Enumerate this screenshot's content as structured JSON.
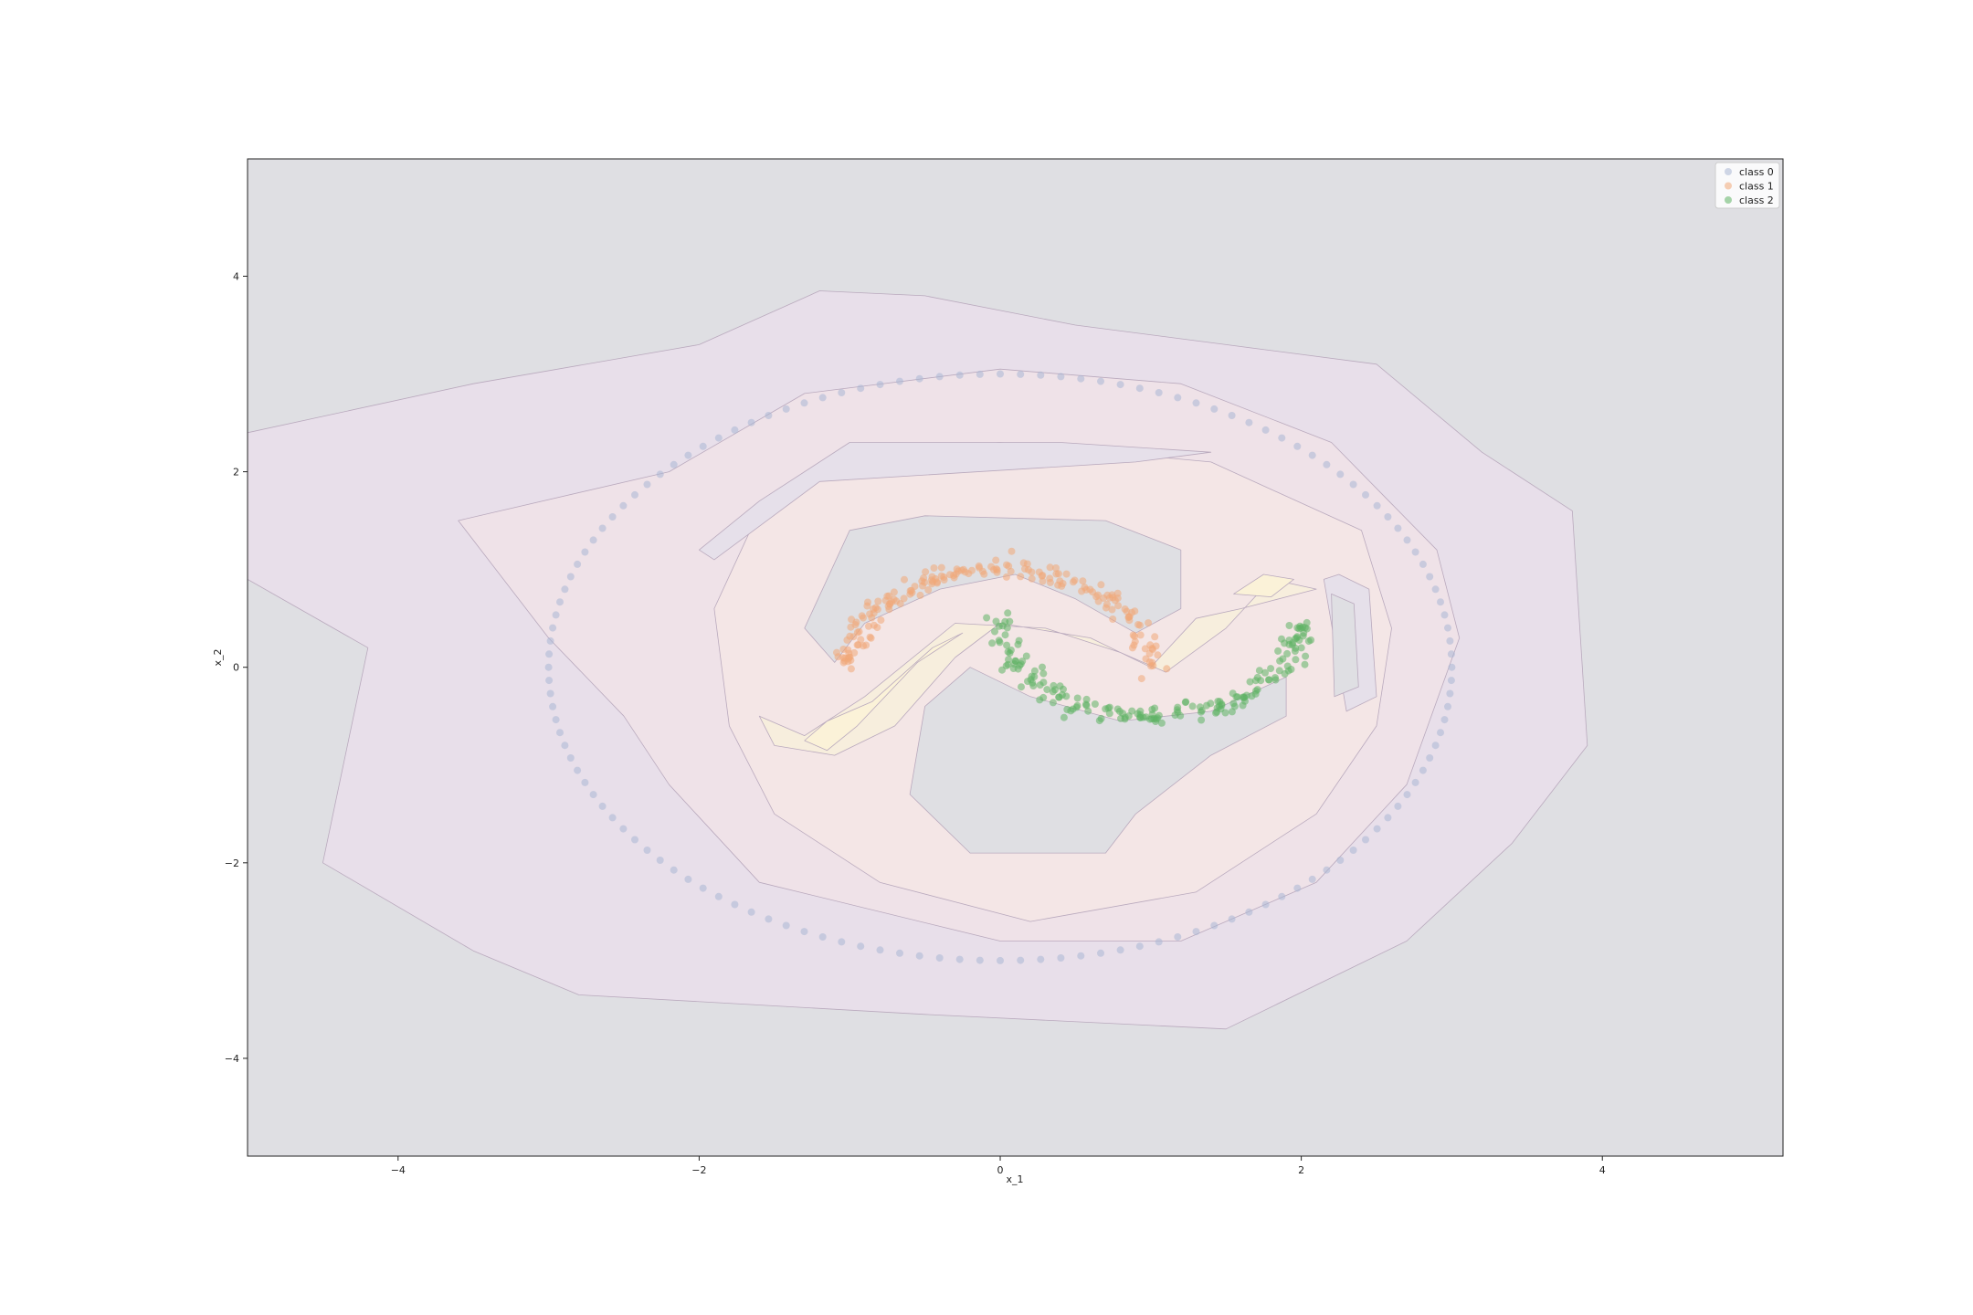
{
  "chart_data": {
    "type": "scatter",
    "title": "",
    "xlabel": "x_1",
    "ylabel": "x_2",
    "xlim": [
      -5.0,
      5.2
    ],
    "ylim": [
      -5.0,
      5.2
    ],
    "xticks": [
      -4,
      -2,
      0,
      2,
      4
    ],
    "yticks": [
      -4,
      -2,
      0,
      2,
      4
    ],
    "xtick_labels": [
      "−4",
      "−2",
      "0",
      "2",
      "4"
    ],
    "ytick_labels": [
      "−4",
      "−2",
      "0",
      "2",
      "4"
    ],
    "grid": false,
    "legend_position": "top-right",
    "background_color": "#dfdfe3",
    "series": [
      {
        "name": "class 0",
        "color": "#aab6d3",
        "shape": "circle",
        "radius": 3.0,
        "n": 140,
        "noise": 0.0
      },
      {
        "name": "class 1",
        "color": "#f0a878",
        "shape": "upper-moon",
        "center": [
          0,
          0
        ],
        "radius": 1.0,
        "n": 190,
        "noise": 0.05
      },
      {
        "name": "class 2",
        "color": "#5fb265",
        "shape": "lower-moon",
        "center": [
          1,
          0.5
        ],
        "radius": 1.0,
        "n": 190,
        "noise": 0.05
      }
    ],
    "decision_regions": [
      {
        "level": 1,
        "color": "#e8dfea",
        "polygon": [
          [
            -5,
            2.4
          ],
          [
            -3.5,
            2.9
          ],
          [
            -2,
            3.3
          ],
          [
            -1.2,
            3.85
          ],
          [
            -0.5,
            3.8
          ],
          [
            0.5,
            3.5
          ],
          [
            1.5,
            3.3
          ],
          [
            2.5,
            3.1
          ],
          [
            3.2,
            2.2
          ],
          [
            3.8,
            1.6
          ],
          [
            3.9,
            -0.8
          ],
          [
            3.4,
            -1.8
          ],
          [
            2.7,
            -2.8
          ],
          [
            1.5,
            -3.7
          ],
          [
            -0.5,
            -3.55
          ],
          [
            -2.8,
            -3.35
          ],
          [
            -3.5,
            -2.9
          ],
          [
            -4.5,
            -2.0
          ],
          [
            -4.2,
            0.2
          ],
          [
            -5,
            0.9
          ]
        ]
      },
      {
        "level": 2,
        "color": "#efe2e8",
        "polygon": [
          [
            -3.6,
            1.5
          ],
          [
            -2.2,
            2.0
          ],
          [
            -1.3,
            2.8
          ],
          [
            0.0,
            3.05
          ],
          [
            1.2,
            2.9
          ],
          [
            2.2,
            2.3
          ],
          [
            2.9,
            1.2
          ],
          [
            3.05,
            0.3
          ],
          [
            2.7,
            -1.2
          ],
          [
            2.1,
            -2.2
          ],
          [
            1.2,
            -2.8
          ],
          [
            0.0,
            -2.8
          ],
          [
            -1.6,
            -2.2
          ],
          [
            -2.2,
            -1.2
          ],
          [
            -2.5,
            -0.5
          ],
          [
            -3.0,
            0.3
          ]
        ]
      },
      {
        "level": 3,
        "color": "#f4e6e6",
        "polygon": [
          [
            -1.9,
            0.6
          ],
          [
            -1.6,
            1.6
          ],
          [
            -1.0,
            2.2
          ],
          [
            0.0,
            2.3
          ],
          [
            1.4,
            2.1
          ],
          [
            2.4,
            1.4
          ],
          [
            2.6,
            0.4
          ],
          [
            2.5,
            -0.6
          ],
          [
            2.1,
            -1.5
          ],
          [
            1.3,
            -2.3
          ],
          [
            0.2,
            -2.6
          ],
          [
            -0.8,
            -2.2
          ],
          [
            -1.5,
            -1.5
          ],
          [
            -1.8,
            -0.6
          ]
        ]
      },
      {
        "level": 4,
        "color": "#f7eedd",
        "polygon": [
          [
            -1.6,
            -0.5
          ],
          [
            -1.3,
            -0.7
          ],
          [
            -0.9,
            -0.3
          ],
          [
            -0.3,
            0.45
          ],
          [
            0.3,
            0.4
          ],
          [
            0.8,
            0.15
          ],
          [
            1.1,
            -0.05
          ],
          [
            1.5,
            0.4
          ],
          [
            1.8,
            0.9
          ],
          [
            2.1,
            0.8
          ],
          [
            1.6,
            0.6
          ],
          [
            1.3,
            0.5
          ],
          [
            1.0,
            0.0
          ],
          [
            0.6,
            0.3
          ],
          [
            0.0,
            0.45
          ],
          [
            -0.3,
            0.1
          ],
          [
            -0.7,
            -0.6
          ],
          [
            -1.1,
            -0.9
          ],
          [
            -1.5,
            -0.8
          ]
        ]
      },
      {
        "level": 5,
        "color": "#fbf2d8",
        "polygon": [
          [
            -1.3,
            -0.75
          ],
          [
            -1.15,
            -0.55
          ],
          [
            -0.85,
            -0.35
          ],
          [
            -0.45,
            0.2
          ],
          [
            -0.25,
            0.35
          ],
          [
            -0.55,
            0.05
          ],
          [
            -0.95,
            -0.6
          ],
          [
            -1.15,
            -0.85
          ]
        ]
      },
      {
        "level": 6,
        "color": "#fbf2d8",
        "polygon": [
          [
            1.55,
            0.75
          ],
          [
            1.75,
            0.95
          ],
          [
            1.95,
            0.9
          ],
          [
            1.8,
            0.72
          ]
        ]
      },
      {
        "level": 7,
        "color": "#e6e0ea",
        "polygon": [
          [
            -1.9,
            1.1
          ],
          [
            -1.2,
            1.9
          ],
          [
            0.9,
            2.1
          ],
          [
            1.4,
            2.2
          ],
          [
            0.4,
            2.3
          ],
          [
            -1.0,
            2.3
          ],
          [
            -1.6,
            1.7
          ],
          [
            -2.0,
            1.2
          ]
        ]
      },
      {
        "level": 8,
        "color": "#e6e0ea",
        "polygon": [
          [
            2.25,
            0.95
          ],
          [
            2.45,
            0.8
          ],
          [
            2.5,
            -0.3
          ],
          [
            2.3,
            -0.45
          ],
          [
            2.15,
            0.9
          ]
        ]
      },
      {
        "level": 9,
        "color": "#dfdfe3",
        "polygon": [
          [
            -1.3,
            0.4
          ],
          [
            -1.0,
            1.4
          ],
          [
            -0.5,
            1.55
          ],
          [
            0.7,
            1.5
          ],
          [
            1.2,
            1.2
          ],
          [
            1.2,
            0.6
          ],
          [
            0.9,
            0.35
          ],
          [
            0.5,
            0.7
          ],
          [
            0.1,
            0.95
          ],
          [
            -0.4,
            0.8
          ],
          [
            -0.9,
            0.45
          ],
          [
            -1.1,
            0.05
          ]
        ]
      },
      {
        "level": 10,
        "color": "#dfdfe3",
        "polygon": [
          [
            -0.6,
            -1.3
          ],
          [
            -0.5,
            -0.4
          ],
          [
            -0.2,
            0.0
          ],
          [
            0.2,
            -0.3
          ],
          [
            0.8,
            -0.55
          ],
          [
            1.4,
            -0.45
          ],
          [
            1.9,
            -0.1
          ],
          [
            1.9,
            -0.5
          ],
          [
            1.4,
            -0.9
          ],
          [
            0.9,
            -1.5
          ],
          [
            0.7,
            -1.9
          ],
          [
            -0.2,
            -1.9
          ]
        ]
      },
      {
        "level": 11,
        "color": "#dfdfe3",
        "polygon": [
          [
            2.2,
            0.75
          ],
          [
            2.35,
            0.65
          ],
          [
            2.38,
            -0.2
          ],
          [
            2.22,
            -0.3
          ]
        ]
      }
    ]
  }
}
